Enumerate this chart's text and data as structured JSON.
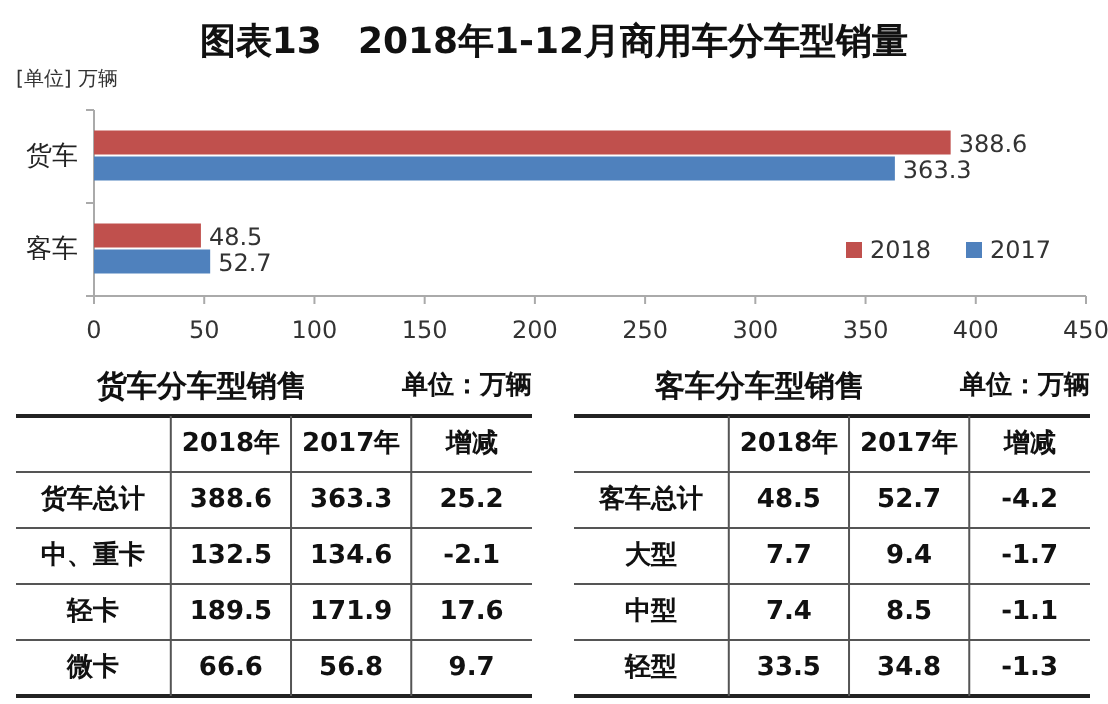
{
  "chart_data": [
    {
      "type": "bar",
      "title": "图表13　2018年1-12月商用车分车型销量",
      "orientation": "horizontal",
      "categories": [
        "货车",
        "客车"
      ],
      "series": [
        {
          "name": "2018",
          "color": "#c0504d",
          "values": [
            388.6,
            48.5
          ]
        },
        {
          "name": "2017",
          "color": "#4f81bd",
          "values": [
            363.3,
            52.7
          ]
        }
      ],
      "xlim": [
        0,
        450
      ],
      "xticks": [
        0,
        50,
        100,
        150,
        200,
        250,
        300,
        350,
        400,
        450
      ],
      "data_labels": true,
      "legend": "bottom right",
      "annotations": [
        "[单位] 万辆"
      ]
    },
    {
      "type": "other",
      "title": "货车分车型销售",
      "subtitle": "单位：万辆",
      "annotations": [
        "2018年",
        "2017年",
        "增减",
        "货车总计",
        "388.6",
        "363.3",
        "25.2",
        "中、重卡",
        "132.5",
        "134.6",
        "-2.1",
        "轻卡",
        "189.5",
        "171.9",
        "17.6",
        "微卡",
        "66.6",
        "56.8",
        "9.7"
      ]
    },
    {
      "type": "other",
      "title": "客车分车型销售",
      "subtitle": "单位：万辆",
      "annotations": [
        "2018年",
        "2017年",
        "增减",
        "客车总计",
        "48.5",
        "52.7",
        "-4.2",
        "大型",
        "7.7",
        "9.4",
        "-1.7",
        "中型",
        "7.4",
        "8.5",
        "-1.1",
        "轻型",
        "33.5",
        "34.8",
        "-1.3"
      ]
    }
  ]
}
